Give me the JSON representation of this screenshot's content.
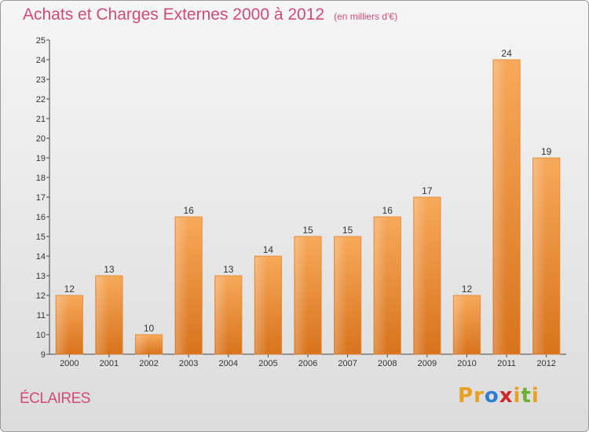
{
  "header": {
    "title": "Achats et Charges Externes 2000 à 2012",
    "unit": "(en milliers d'€)"
  },
  "footer": {
    "commune": "ÉCLAIRES",
    "logo": "Proxiti"
  },
  "colors": {
    "title": "#d04a7a",
    "bar_top": "#f7a95a",
    "bar_bottom": "#d8731c",
    "logo": [
      "#e8a020",
      "#e8a020",
      "#2e7fd0",
      "#d02828",
      "#e8a020",
      "#70b030",
      "#e8a020"
    ]
  },
  "chart_data": {
    "type": "bar",
    "categories": [
      "2000",
      "2001",
      "2002",
      "2003",
      "2004",
      "2005",
      "2006",
      "2007",
      "2008",
      "2009",
      "2010",
      "2011",
      "2012"
    ],
    "values": [
      12,
      13,
      10,
      16,
      13,
      14,
      15,
      15,
      16,
      17,
      12,
      24,
      19
    ],
    "data_labels": [
      "12",
      "13",
      "10",
      "16",
      "13",
      "14",
      "15",
      "15",
      "16",
      "17",
      "12",
      "24",
      "19"
    ],
    "yticks": [
      "9",
      "10",
      "11",
      "12",
      "13",
      "14",
      "15",
      "16",
      "17",
      "18",
      "19",
      "20",
      "21",
      "22",
      "23",
      "24",
      "25"
    ],
    "ylim": [
      9,
      25
    ],
    "grid": false,
    "title": "Achats et Charges Externes 2000 à 2012"
  }
}
